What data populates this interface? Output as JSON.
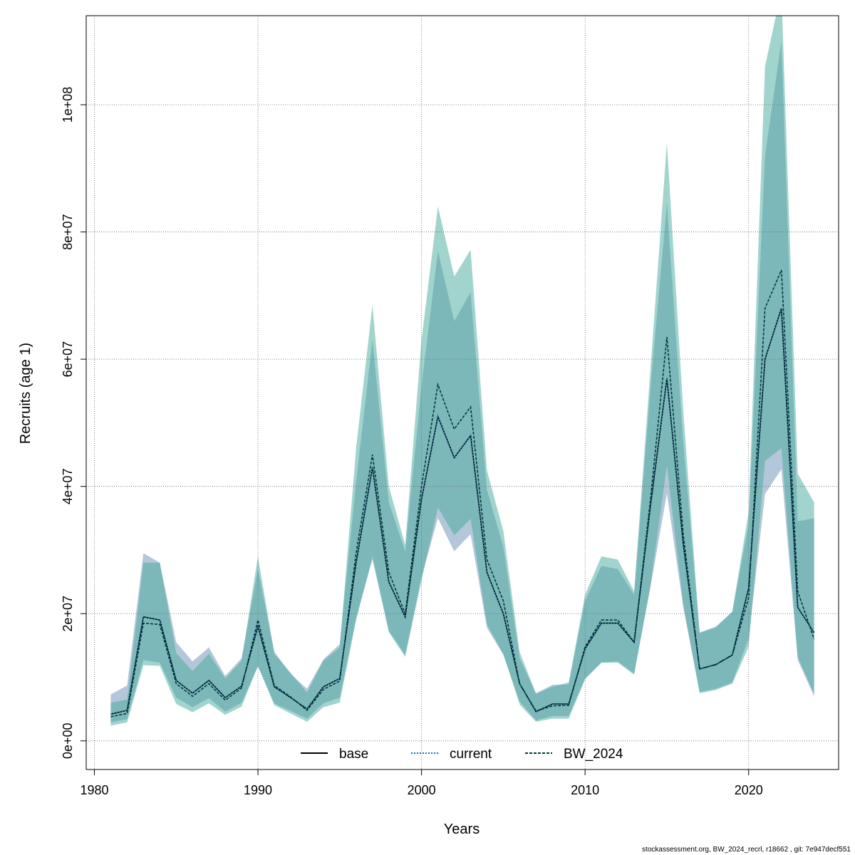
{
  "chart_data": {
    "type": "area",
    "xlabel": "Years",
    "ylabel": "Recruits (age 1)",
    "xlim": [
      1979.5,
      2025.5
    ],
    "ylim": [
      -4500000,
      114000000
    ],
    "x_ticks": [
      1980,
      1990,
      2000,
      2010,
      2020
    ],
    "x_tick_labels": [
      "1980",
      "1990",
      "2000",
      "2010",
      "2020"
    ],
    "y_ticks": [
      0,
      20000000,
      40000000,
      60000000,
      80000000,
      100000000
    ],
    "y_tick_labels": [
      "0e+00",
      "2e+07",
      "4e+07",
      "6e+07",
      "8e+07",
      "1e+08"
    ],
    "grid": true,
    "legend_position": "bottom",
    "x": [
      1981,
      1982,
      1983,
      1984,
      1985,
      1986,
      1987,
      1988,
      1989,
      1990,
      1991,
      1992,
      1993,
      1994,
      1995,
      1996,
      1997,
      1998,
      1999,
      2000,
      2001,
      2002,
      2003,
      2004,
      2005,
      2006,
      2007,
      2008,
      2009,
      2010,
      2011,
      2012,
      2013,
      2014,
      2015,
      2016,
      2017,
      2018,
      2019,
      2020,
      2021,
      2022,
      2023,
      2024
    ],
    "series": [
      {
        "name": "base",
        "color": "#000000",
        "dash": "solid",
        "band_color": "#6a8fb5",
        "values": [
          4200000,
          4800000,
          19500000,
          19000000,
          9500000,
          7500000,
          9500000,
          6800000,
          8600000,
          18000000,
          8500000,
          6800000,
          5000000,
          8500000,
          9800000,
          28000000,
          43000000,
          25000000,
          19500000,
          38000000,
          51000000,
          44500000,
          48000000,
          26500000,
          20000000,
          9000000,
          4600000,
          5800000,
          5800000,
          14500000,
          18500000,
          18500000,
          15500000,
          37000000,
          57000000,
          31000000,
          11300000,
          12000000,
          13500000,
          24000000,
          60000000,
          68000000,
          21000000,
          17000000
        ],
        "lower": [
          2900000,
          3400000,
          12700000,
          12300000,
          6800000,
          5300000,
          6700000,
          4600000,
          6000000,
          11700000,
          5900000,
          4700000,
          3500000,
          5900000,
          6800000,
          19300000,
          28500000,
          17300000,
          13500000,
          25800000,
          35000000,
          29800000,
          32500000,
          17800000,
          13500000,
          6200000,
          3200000,
          3900000,
          3900000,
          9800000,
          12300000,
          12500000,
          10600000,
          24200000,
          38900000,
          21000000,
          7700000,
          8200000,
          9200000,
          16100000,
          38800000,
          42700000,
          12700000,
          7000000
        ],
        "upper": [
          7300000,
          8700000,
          29500000,
          28000000,
          15500000,
          12500000,
          14700000,
          10200000,
          13000000,
          27000000,
          14000000,
          10500000,
          8200000,
          12800000,
          15200000,
          40700000,
          63000000,
          37500000,
          29800000,
          55800000,
          77000000,
          66000000,
          70500000,
          39500000,
          30500000,
          13000000,
          7500000,
          8800000,
          8900000,
          22000000,
          27500000,
          27000000,
          23000000,
          55500000,
          84500000,
          47000000,
          17000000,
          17800000,
          20300000,
          34000000,
          92000000,
          110000000,
          34500000,
          35000000
        ]
      },
      {
        "name": "current",
        "color": "#1f6f9f",
        "dash": "dotted",
        "values": [
          4200000,
          4800000,
          19500000,
          19000000,
          9500000,
          7500000,
          9500000,
          6800000,
          8600000,
          18000000,
          8500000,
          6800000,
          5000000,
          8500000,
          9800000,
          28000000,
          43000000,
          25000000,
          19500000,
          38000000,
          51000000,
          44500000,
          48000000,
          26500000,
          20000000,
          9000000,
          4600000,
          5800000,
          5800000,
          14500000,
          18500000,
          18500000,
          15500000,
          37000000,
          57000000,
          31000000,
          11300000,
          12000000,
          13500000,
          24000000,
          60000000,
          68000000,
          21000000,
          17000000
        ]
      },
      {
        "name": "BW_2024",
        "color": "#003b3b",
        "dash": "dashed",
        "band_color": "#43aa99",
        "values": [
          3800000,
          4300000,
          18500000,
          18300000,
          9000000,
          7000000,
          9000000,
          6400000,
          8300000,
          19000000,
          8700000,
          6900000,
          4800000,
          8100000,
          9400000,
          29500000,
          45000000,
          26500000,
          20000000,
          40000000,
          56000000,
          49000000,
          52500000,
          28500000,
          22000000,
          9000000,
          4700000,
          5500000,
          5600000,
          14800000,
          19000000,
          19000000,
          15500000,
          38000000,
          63500000,
          32500000,
          11300000,
          12000000,
          13500000,
          22500000,
          68000000,
          74000000,
          23500000,
          16000000
        ],
        "lower": [
          2400000,
          2900000,
          11900000,
          11800000,
          5800000,
          4500000,
          5900000,
          4100000,
          5400000,
          11800000,
          5600000,
          4300000,
          3000000,
          5300000,
          6000000,
          19000000,
          29000000,
          17100000,
          13200000,
          25200000,
          36700000,
          32300000,
          34900000,
          18300000,
          13700000,
          5700000,
          3000000,
          3500000,
          3500000,
          9700000,
          12300000,
          12300000,
          10400000,
          24500000,
          43300000,
          21500000,
          7500000,
          8000000,
          9000000,
          14800000,
          44000000,
          46000000,
          13200000,
          7400000
        ],
        "upper": [
          6000000,
          6500000,
          28000000,
          28000000,
          13800000,
          11000000,
          13700000,
          9800000,
          12600000,
          29000000,
          13700000,
          10700000,
          7600000,
          12600000,
          14700000,
          46000000,
          68500000,
          40000000,
          30800000,
          63000000,
          84000000,
          73000000,
          77200000,
          42500000,
          33000000,
          14000000,
          7400000,
          8500000,
          9200000,
          23000000,
          29000000,
          28500000,
          23500000,
          58500000,
          94000000,
          52000000,
          17000000,
          18000000,
          20300000,
          36000000,
          106000000,
          118000000,
          42000000,
          37500000
        ]
      }
    ]
  },
  "footer": "stockassessment.org, BW_2024_recrl, r18662 , git: 7e947decf551"
}
